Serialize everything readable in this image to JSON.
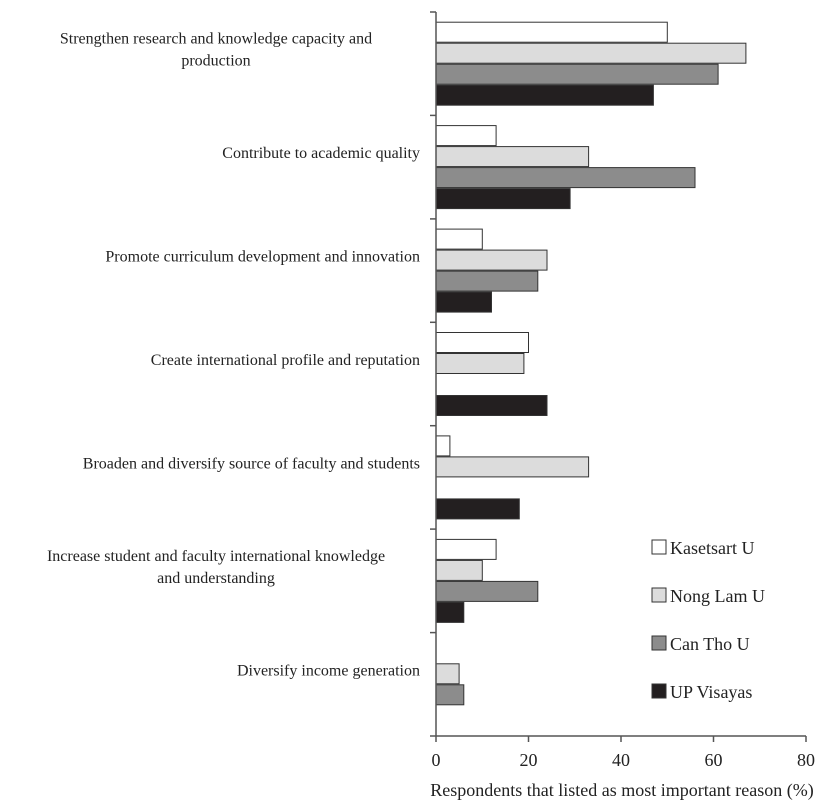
{
  "chart_data": {
    "type": "bar",
    "orientation": "horizontal",
    "title": "",
    "xlabel": "Respondents that listed as most important reason (%)",
    "ylabel": "",
    "xlim": [
      0,
      80
    ],
    "xticks": [
      0,
      20,
      40,
      60,
      80
    ],
    "grid": false,
    "legend_position": "bottom-right",
    "categories": [
      [
        "Strengthen research and knowledge capacity and",
        "production"
      ],
      [
        "Contribute to academic quality"
      ],
      [
        "Promote curriculum development and innovation"
      ],
      [
        "Create international profile and reputation"
      ],
      [
        "Broaden and diversify source of faculty and students"
      ],
      [
        "Increase student and faculty international knowledge",
        "and understanding"
      ],
      [
        "Diversify income generation"
      ]
    ],
    "series": [
      {
        "name": "Kasetsart U",
        "color": "#ffffff",
        "values": [
          50,
          13,
          10,
          20,
          3,
          13,
          0
        ]
      },
      {
        "name": "Nong Lam U",
        "color": "#dcdcdc",
        "values": [
          67,
          33,
          24,
          19,
          33,
          10,
          5
        ]
      },
      {
        "name": "Can Tho U",
        "color": "#8c8c8c",
        "values": [
          61,
          56,
          22,
          0,
          0,
          22,
          6
        ]
      },
      {
        "name": "UP Visayas",
        "color": "#231f20",
        "values": [
          47,
          29,
          12,
          24,
          18,
          6,
          0
        ]
      }
    ]
  }
}
